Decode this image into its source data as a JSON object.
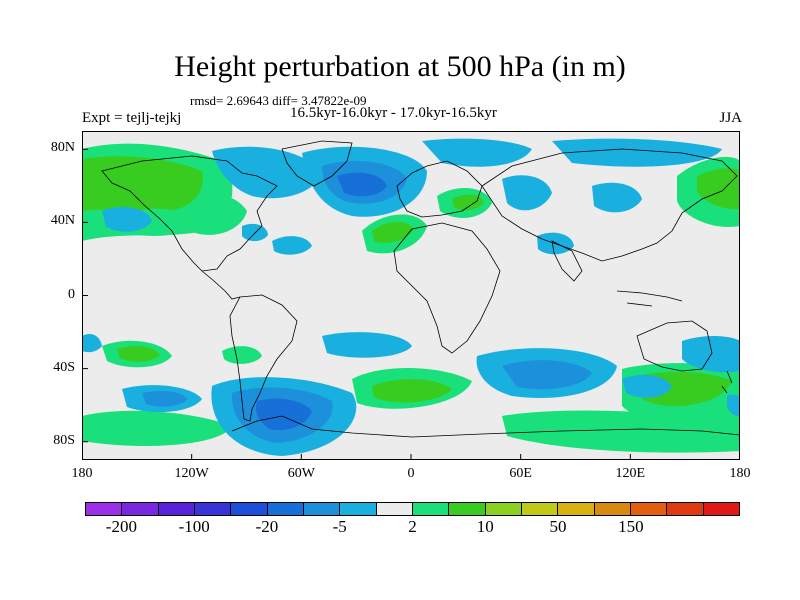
{
  "title": "Height perturbation at 500 hPa (in m)",
  "stats": "rmsd= 2.69643 diff= 3.47822e-09",
  "expt": "Expt = tejlj-tejkj",
  "subtitle": "16.5kyr-16.0kyr - 17.0kyr-16.5kyr",
  "season": "JJA",
  "lat_labels": [
    "80N",
    "40N",
    "0",
    "40S",
    "80S"
  ],
  "lat_values": [
    80,
    40,
    0,
    -40,
    -80
  ],
  "lon_labels": [
    "180",
    "120W",
    "60W",
    "0",
    "60E",
    "120E",
    "180"
  ],
  "lon_values": [
    -180,
    -120,
    -60,
    0,
    60,
    120,
    180
  ],
  "colorbar": {
    "colors": [
      "#9b30e8",
      "#7a28e0",
      "#5a22d8",
      "#3a33d8",
      "#1e4fd8",
      "#1670d8",
      "#1d90dc",
      "#19b0e0",
      "#ececec",
      "#1ae07c",
      "#38cc20",
      "#8cd020",
      "#c0c818",
      "#d8b010",
      "#d88a10",
      "#e06010",
      "#e03a10",
      "#e01818"
    ],
    "labels": [
      "-200",
      "-100",
      "-20",
      "-5",
      "2",
      "10",
      "50",
      "150"
    ],
    "label_boundaries": [
      1,
      3,
      5,
      7,
      9,
      11,
      13,
      15
    ]
  },
  "map_colors": {
    "ocean_bg": "#ececec",
    "neg_light": "#19b0e0",
    "neg_mid": "#1d90dc",
    "neg_strong": "#1670d8",
    "pos_light": "#1ae07c",
    "pos_mid": "#38cc20",
    "coast": "#000000"
  }
}
